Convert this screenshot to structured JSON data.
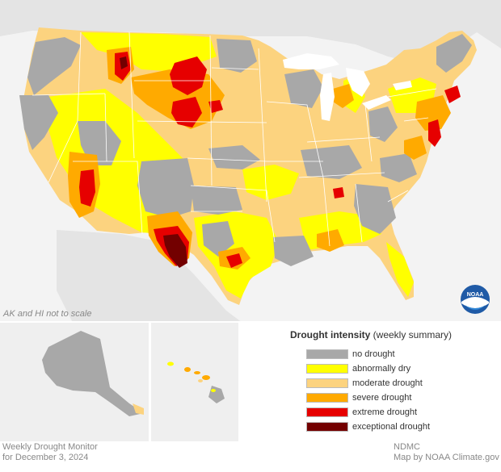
{
  "inset_note": "AK and HI not to scale",
  "legend": {
    "title_bold": "Drought intensity",
    "title_rest": " (weekly summary)",
    "items": [
      {
        "label": "no drought",
        "color": "#a8a8a8"
      },
      {
        "label": "abnormally dry",
        "color": "#ffff00"
      },
      {
        "label": "moderate drought",
        "color": "#fcd37f"
      },
      {
        "label": "severe drought",
        "color": "#ffaa00"
      },
      {
        "label": "extreme drought",
        "color": "#e60000"
      },
      {
        "label": "exceptional drought",
        "color": "#730000"
      }
    ]
  },
  "footer_left": [
    "Weekly Drought Monitor",
    "for December 3, 2024"
  ],
  "footer_right": [
    "NDMC",
    "Map by NOAA Climate.gov"
  ],
  "logo_text": "NOAA",
  "colors": {
    "land_outside": "#e6e6e6",
    "water": "#ffffff",
    "state_border": "#ffffff",
    "panel_background": "#efefef"
  }
}
